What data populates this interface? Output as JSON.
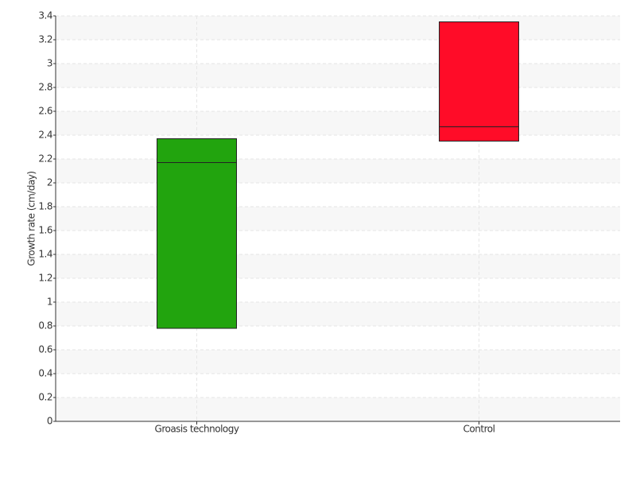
{
  "chart_data": {
    "type": "box",
    "y_label": "Growth rate (cm/day)",
    "categories": [
      "Groasis technology",
      "Control"
    ],
    "low": [
      0.78,
      2.35
    ],
    "median": [
      2.17,
      2.47
    ],
    "high": [
      2.37,
      3.35
    ],
    "colors": [
      "#22a40e",
      "#ff0c28"
    ],
    "ylim": [
      0,
      3.4
    ],
    "yticks": [
      0,
      0.2,
      0.4,
      0.6,
      0.8,
      1,
      1.2,
      1.4,
      1.6,
      1.8,
      2,
      2.2,
      2.4,
      2.6,
      2.8,
      3,
      3.2,
      3.4
    ],
    "grid": true
  }
}
